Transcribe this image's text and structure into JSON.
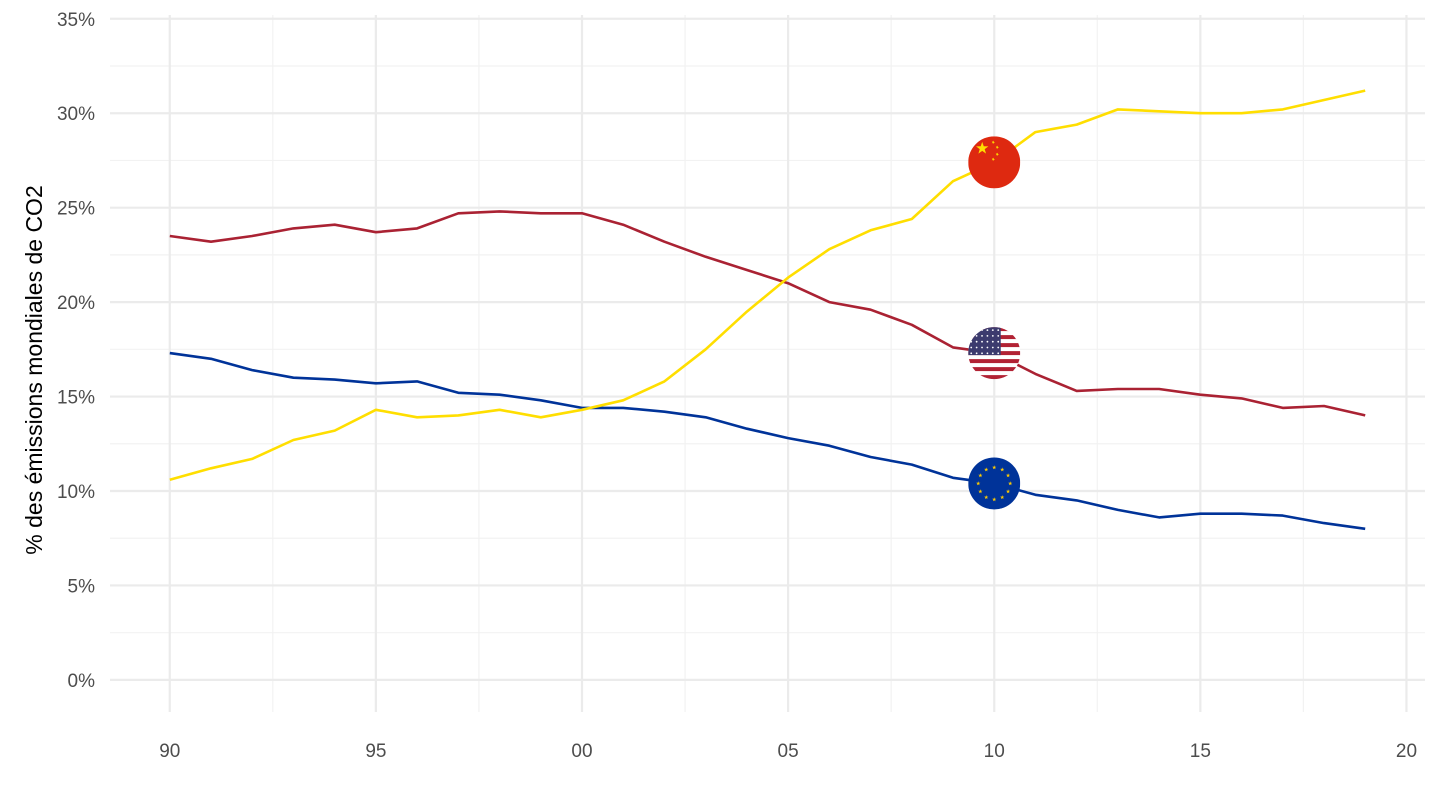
{
  "chart_data": {
    "type": "line",
    "title": "",
    "xlabel": "",
    "ylabel": "% des émissions mondiales de CO2",
    "xlim": [
      1988.55,
      2020.45
    ],
    "ylim": [
      -0.017,
      0.352
    ],
    "x_ticks": [
      1990,
      1995,
      2000,
      2005,
      2010,
      2015,
      2020
    ],
    "x_tick_labels": [
      "90",
      "95",
      "00",
      "05",
      "10",
      "15",
      "20"
    ],
    "y_ticks": [
      0,
      0.05,
      0.1,
      0.15,
      0.2,
      0.25,
      0.3,
      0.35
    ],
    "y_tick_labels": [
      "0%",
      "5%",
      "10%",
      "15%",
      "20%",
      "25%",
      "30%",
      "35%"
    ],
    "grid": true,
    "legend": "none",
    "marker_year": 2010,
    "x": [
      1990,
      1991,
      1992,
      1993,
      1994,
      1995,
      1996,
      1997,
      1998,
      1999,
      2000,
      2001,
      2002,
      2003,
      2004,
      2005,
      2006,
      2007,
      2008,
      2009,
      2010,
      2011,
      2012,
      2013,
      2014,
      2015,
      2016,
      2017,
      2018,
      2019
    ],
    "series": [
      {
        "color": "#aa2233",
        "flag_icon": "us-flag-icon",
        "values": [
          0.235,
          0.232,
          0.235,
          0.239,
          0.241,
          0.237,
          0.239,
          0.247,
          0.248,
          0.247,
          0.247,
          0.241,
          0.232,
          0.224,
          0.217,
          0.21,
          0.2,
          0.196,
          0.188,
          0.176,
          0.173,
          0.162,
          0.153,
          0.154,
          0.154,
          0.151,
          0.149,
          0.144,
          0.145,
          0.14
        ]
      },
      {
        "color": "#003399",
        "flag_icon": "eu-flag-icon",
        "values": [
          0.173,
          0.17,
          0.164,
          0.16,
          0.159,
          0.157,
          0.158,
          0.152,
          0.151,
          0.148,
          0.144,
          0.144,
          0.142,
          0.139,
          0.133,
          0.128,
          0.124,
          0.118,
          0.114,
          0.107,
          0.104,
          0.098,
          0.095,
          0.09,
          0.086,
          0.088,
          0.088,
          0.087,
          0.083,
          0.08
        ]
      },
      {
        "color": "#ffde00",
        "flag_icon": "china-flag-icon",
        "values": [
          0.106,
          0.112,
          0.117,
          0.127,
          0.132,
          0.143,
          0.139,
          0.14,
          0.143,
          0.139,
          0.143,
          0.148,
          0.158,
          0.175,
          0.195,
          0.213,
          0.228,
          0.238,
          0.244,
          0.264,
          0.274,
          0.29,
          0.294,
          0.302,
          0.301,
          0.3,
          0.3,
          0.302,
          0.307,
          0.312
        ]
      }
    ]
  }
}
